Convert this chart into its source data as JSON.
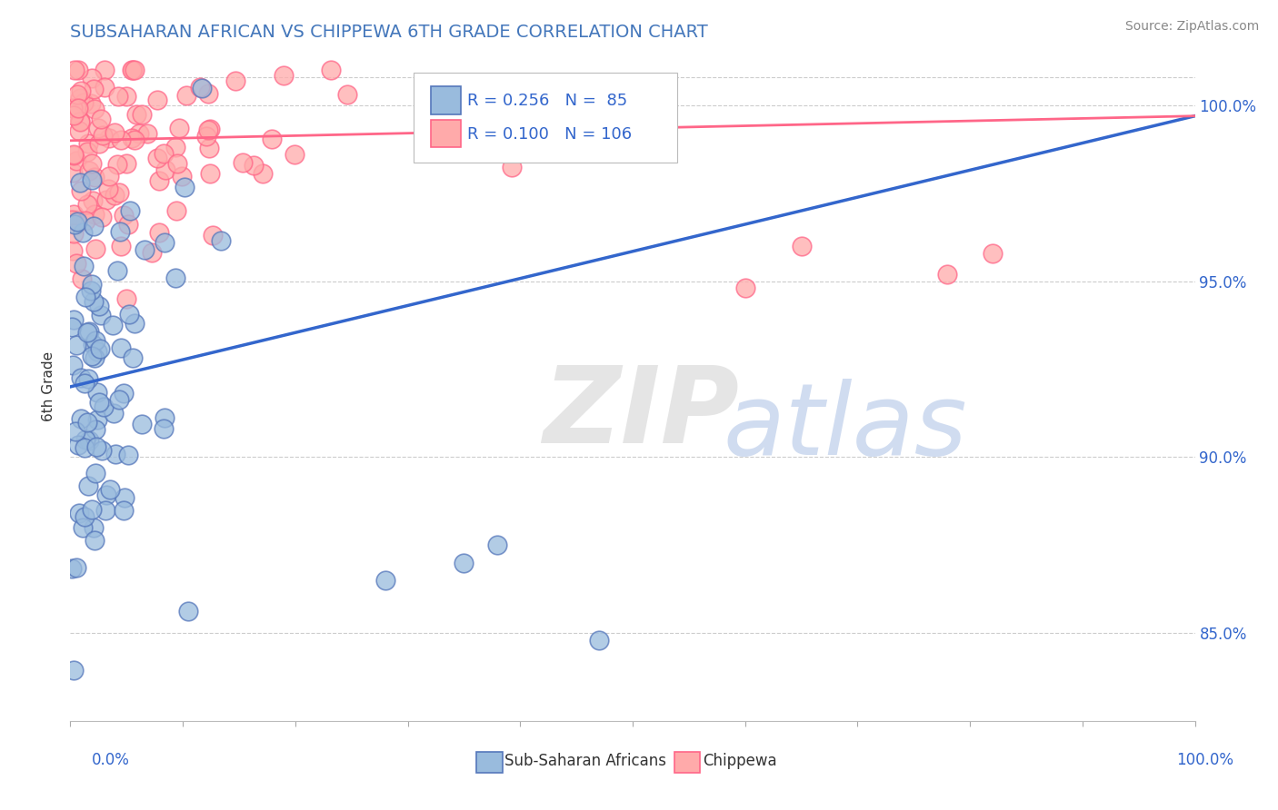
{
  "title": "SUBSAHARAN AFRICAN VS CHIPPEWA 6TH GRADE CORRELATION CHART",
  "source": "Source: ZipAtlas.com",
  "ylabel": "6th Grade",
  "legend1_r": "0.256",
  "legend1_n": "85",
  "legend2_r": "0.100",
  "legend2_n": "106",
  "blue_fill": "#99BBDD",
  "blue_edge": "#5577BB",
  "pink_fill": "#FFAAAA",
  "pink_edge": "#FF6688",
  "blue_line_color": "#3366CC",
  "pink_line_color": "#FF6688",
  "title_color": "#4477BB",
  "axis_label_color": "#3366CC",
  "ytick_color": "#3366CC",
  "background_color": "#FFFFFF",
  "grid_color": "#CCCCCC",
  "ylabel_color": "#333333",
  "xlim": [
    0.0,
    1.0
  ],
  "ylim": [
    0.825,
    1.015
  ],
  "yticks": [
    0.85,
    0.9,
    0.95,
    1.0
  ],
  "ytick_labels": [
    "85.0%",
    "90.0%",
    "95.0%",
    "100.0%"
  ],
  "blue_trend": [
    0.0,
    0.92,
    1.0,
    0.997
  ],
  "pink_trend": [
    0.0,
    0.99,
    1.0,
    0.997
  ]
}
